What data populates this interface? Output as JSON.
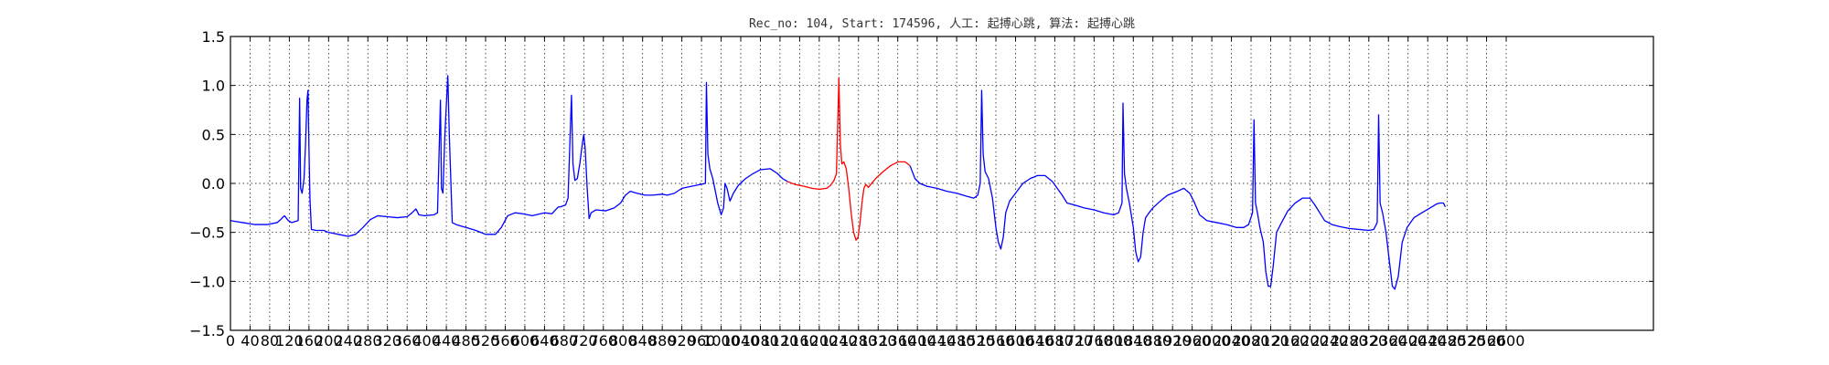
{
  "chart_data": {
    "type": "line",
    "title": "Rec_no: 104, Start: 174596, 人工: 起搏心跳, 算法: 起搏心跳",
    "xlabel": "",
    "ylabel": "",
    "xlim": [
      0,
      2900
    ],
    "ylim": [
      -1.5,
      1.5
    ],
    "grid": true,
    "x_ticks": [
      0,
      40,
      80,
      120,
      160,
      200,
      240,
      280,
      320,
      360,
      400,
      440,
      480,
      520,
      560,
      600,
      640,
      680,
      720,
      760,
      800,
      840,
      880,
      920,
      960,
      1000,
      1040,
      1080,
      1120,
      1160,
      1200,
      1240,
      1280,
      1320,
      1360,
      1400,
      1440,
      1480,
      1520,
      1560,
      1600,
      1640,
      1680,
      1720,
      1760,
      1800,
      1840,
      1880,
      1920,
      1960,
      2000,
      2040,
      2080,
      2120,
      2160,
      2200,
      2240,
      2280,
      2320,
      2360,
      2400,
      2440,
      2480,
      2520,
      2560,
      2600
    ],
    "y_ticks": [
      -1.5,
      -1.0,
      -0.5,
      0.0,
      0.5,
      1.0,
      1.5
    ],
    "y_tick_labels": [
      "−1.5",
      "−1.0",
      "−0.5",
      "0.0",
      "0.5",
      "1.0",
      "1.5"
    ],
    "series": [
      {
        "color": "#0000ff",
        "points": [
          [
            0,
            -0.38
          ],
          [
            25,
            -0.4
          ],
          [
            50,
            -0.42
          ],
          [
            75,
            -0.42
          ],
          [
            95,
            -0.4
          ],
          [
            100,
            -0.38
          ],
          [
            110,
            -0.33
          ],
          [
            118,
            -0.38
          ],
          [
            125,
            -0.4
          ],
          [
            138,
            -0.38
          ],
          [
            141,
            0.87
          ],
          [
            143,
            -0.05
          ],
          [
            146,
            -0.1
          ],
          [
            150,
            0.05
          ],
          [
            153,
            0.4
          ],
          [
            156,
            0.85
          ],
          [
            158,
            0.95
          ],
          [
            160,
            0.35
          ],
          [
            162,
            -0.15
          ],
          [
            165,
            -0.47
          ],
          [
            175,
            -0.48
          ],
          [
            190,
            -0.48
          ],
          [
            200,
            -0.5
          ],
          [
            220,
            -0.52
          ],
          [
            240,
            -0.54
          ],
          [
            255,
            -0.52
          ],
          [
            270,
            -0.45
          ],
          [
            285,
            -0.37
          ],
          [
            300,
            -0.33
          ],
          [
            320,
            -0.34
          ],
          [
            340,
            -0.35
          ],
          [
            360,
            -0.34
          ],
          [
            370,
            -0.3
          ],
          [
            378,
            -0.26
          ],
          [
            384,
            -0.32
          ],
          [
            395,
            -0.33
          ],
          [
            415,
            -0.32
          ],
          [
            422,
            -0.3
          ],
          [
            428,
            0.85
          ],
          [
            430,
            -0.05
          ],
          [
            433,
            -0.1
          ],
          [
            437,
            0.5
          ],
          [
            440,
            0.8
          ],
          [
            443,
            1.1
          ],
          [
            446,
            0.5
          ],
          [
            449,
            0.05
          ],
          [
            452,
            -0.4
          ],
          [
            460,
            -0.42
          ],
          [
            480,
            -0.45
          ],
          [
            500,
            -0.48
          ],
          [
            520,
            -0.52
          ],
          [
            540,
            -0.52
          ],
          [
            552,
            -0.45
          ],
          [
            565,
            -0.33
          ],
          [
            580,
            -0.3
          ],
          [
            595,
            -0.31
          ],
          [
            615,
            -0.33
          ],
          [
            640,
            -0.3
          ],
          [
            655,
            -0.31
          ],
          [
            668,
            -0.24
          ],
          [
            672,
            -0.24
          ],
          [
            683,
            -0.22
          ],
          [
            688,
            -0.15
          ],
          [
            695,
            0.9
          ],
          [
            698,
            0.2
          ],
          [
            702,
            0.03
          ],
          [
            707,
            0.05
          ],
          [
            712,
            0.2
          ],
          [
            717,
            0.4
          ],
          [
            720,
            0.5
          ],
          [
            723,
            0.35
          ],
          [
            727,
            -0.05
          ],
          [
            731,
            -0.36
          ],
          [
            735,
            -0.3
          ],
          [
            745,
            -0.27
          ],
          [
            765,
            -0.28
          ],
          [
            782,
            -0.25
          ],
          [
            795,
            -0.2
          ],
          [
            805,
            -0.12
          ],
          [
            815,
            -0.08
          ],
          [
            828,
            -0.1
          ],
          [
            845,
            -0.12
          ],
          [
            860,
            -0.12
          ],
          [
            880,
            -0.11
          ],
          [
            890,
            -0.12
          ],
          [
            905,
            -0.1
          ],
          [
            920,
            -0.05
          ],
          [
            968,
            0.0
          ],
          [
            970,
            1.03
          ],
          [
            973,
            0.3
          ],
          [
            977,
            0.15
          ],
          [
            983,
            0.05
          ],
          [
            993,
            -0.2
          ],
          [
            1000,
            -0.32
          ],
          [
            1005,
            -0.25
          ],
          [
            1008,
            0.0
          ],
          [
            1012,
            -0.05
          ],
          [
            1018,
            -0.18
          ],
          [
            1025,
            -0.1
          ],
          [
            1035,
            -0.02
          ],
          [
            1050,
            0.05
          ],
          [
            1065,
            0.1
          ],
          [
            1080,
            0.14
          ],
          [
            1100,
            0.15
          ],
          [
            1115,
            0.1
          ],
          [
            1125,
            0.05
          ],
          [
            1135,
            0.02
          ]
        ]
      },
      {
        "color": "#ff0000",
        "points": [
          [
            1135,
            0.02
          ],
          [
            1150,
            -0.01
          ],
          [
            1170,
            -0.03
          ],
          [
            1185,
            -0.05
          ],
          [
            1200,
            -0.06
          ],
          [
            1215,
            -0.05
          ],
          [
            1223,
            -0.02
          ],
          [
            1230,
            0.03
          ],
          [
            1235,
            0.1
          ],
          [
            1240,
            1.08
          ],
          [
            1243,
            0.4
          ],
          [
            1246,
            0.2
          ],
          [
            1250,
            0.22
          ],
          [
            1255,
            0.15
          ],
          [
            1260,
            -0.05
          ],
          [
            1265,
            -0.3
          ],
          [
            1270,
            -0.5
          ],
          [
            1275,
            -0.58
          ],
          [
            1279,
            -0.55
          ],
          [
            1283,
            -0.4
          ],
          [
            1287,
            -0.2
          ],
          [
            1291,
            -0.05
          ],
          [
            1295,
            -0.01
          ],
          [
            1300,
            -0.04
          ],
          [
            1305,
            -0.01
          ],
          [
            1315,
            0.05
          ],
          [
            1330,
            0.12
          ],
          [
            1345,
            0.18
          ],
          [
            1360,
            0.22
          ],
          [
            1375,
            0.22
          ],
          [
            1385,
            0.18
          ]
        ]
      },
      {
        "color": "#0000ff",
        "points": [
          [
            1385,
            0.18
          ],
          [
            1395,
            0.05
          ],
          [
            1405,
            0.0
          ],
          [
            1420,
            -0.03
          ],
          [
            1440,
            -0.05
          ],
          [
            1460,
            -0.08
          ],
          [
            1480,
            -0.1
          ],
          [
            1500,
            -0.13
          ],
          [
            1515,
            -0.15
          ],
          [
            1523,
            -0.12
          ],
          [
            1528,
            0.0
          ],
          [
            1531,
            0.95
          ],
          [
            1534,
            0.3
          ],
          [
            1538,
            0.12
          ],
          [
            1545,
            0.05
          ],
          [
            1553,
            -0.15
          ],
          [
            1560,
            -0.45
          ],
          [
            1565,
            -0.6
          ],
          [
            1570,
            -0.67
          ],
          [
            1575,
            -0.55
          ],
          [
            1580,
            -0.3
          ],
          [
            1588,
            -0.18
          ],
          [
            1600,
            -0.1
          ],
          [
            1615,
            0.0
          ],
          [
            1630,
            0.05
          ],
          [
            1645,
            0.08
          ],
          [
            1660,
            0.08
          ],
          [
            1675,
            0.02
          ],
          [
            1685,
            -0.05
          ],
          [
            1695,
            -0.12
          ],
          [
            1705,
            -0.2
          ],
          [
            1720,
            -0.22
          ],
          [
            1740,
            -0.25
          ],
          [
            1760,
            -0.27
          ],
          [
            1780,
            -0.3
          ],
          [
            1800,
            -0.32
          ],
          [
            1810,
            -0.3
          ],
          [
            1817,
            -0.2
          ],
          [
            1819,
            0.82
          ],
          [
            1822,
            0.1
          ],
          [
            1826,
            -0.05
          ],
          [
            1832,
            -0.2
          ],
          [
            1840,
            -0.45
          ],
          [
            1845,
            -0.7
          ],
          [
            1850,
            -0.8
          ],
          [
            1855,
            -0.75
          ],
          [
            1860,
            -0.5
          ],
          [
            1865,
            -0.35
          ],
          [
            1872,
            -0.3
          ],
          [
            1880,
            -0.25
          ],
          [
            1895,
            -0.18
          ],
          [
            1910,
            -0.12
          ],
          [
            1930,
            -0.08
          ],
          [
            1943,
            -0.05
          ],
          [
            1955,
            -0.1
          ],
          [
            1965,
            -0.2
          ],
          [
            1975,
            -0.32
          ],
          [
            1990,
            -0.38
          ],
          [
            2010,
            -0.4
          ],
          [
            2030,
            -0.42
          ],
          [
            2050,
            -0.45
          ],
          [
            2065,
            -0.45
          ],
          [
            2075,
            -0.42
          ],
          [
            2083,
            -0.3
          ],
          [
            2086,
            0.65
          ],
          [
            2089,
            -0.2
          ],
          [
            2093,
            -0.3
          ],
          [
            2098,
            -0.45
          ],
          [
            2105,
            -0.6
          ],
          [
            2110,
            -0.9
          ],
          [
            2115,
            -1.05
          ],
          [
            2120,
            -1.05
          ],
          [
            2125,
            -0.85
          ],
          [
            2132,
            -0.5
          ],
          [
            2140,
            -0.42
          ],
          [
            2155,
            -0.28
          ],
          [
            2170,
            -0.2
          ],
          [
            2185,
            -0.15
          ],
          [
            2200,
            -0.15
          ],
          [
            2210,
            -0.22
          ],
          [
            2220,
            -0.3
          ],
          [
            2230,
            -0.38
          ],
          [
            2245,
            -0.42
          ],
          [
            2260,
            -0.44
          ],
          [
            2280,
            -0.46
          ],
          [
            2300,
            -0.47
          ],
          [
            2320,
            -0.48
          ],
          [
            2330,
            -0.47
          ],
          [
            2337,
            -0.4
          ],
          [
            2340,
            0.7
          ],
          [
            2343,
            -0.2
          ],
          [
            2348,
            -0.3
          ],
          [
            2355,
            -0.5
          ],
          [
            2362,
            -0.8
          ],
          [
            2368,
            -1.05
          ],
          [
            2373,
            -1.08
          ],
          [
            2380,
            -0.95
          ],
          [
            2388,
            -0.6
          ],
          [
            2398,
            -0.45
          ],
          [
            2412,
            -0.35
          ],
          [
            2428,
            -0.3
          ],
          [
            2445,
            -0.25
          ],
          [
            2458,
            -0.21
          ],
          [
            2465,
            -0.2
          ],
          [
            2472,
            -0.2
          ],
          [
            2476,
            -0.24
          ]
        ]
      }
    ]
  }
}
